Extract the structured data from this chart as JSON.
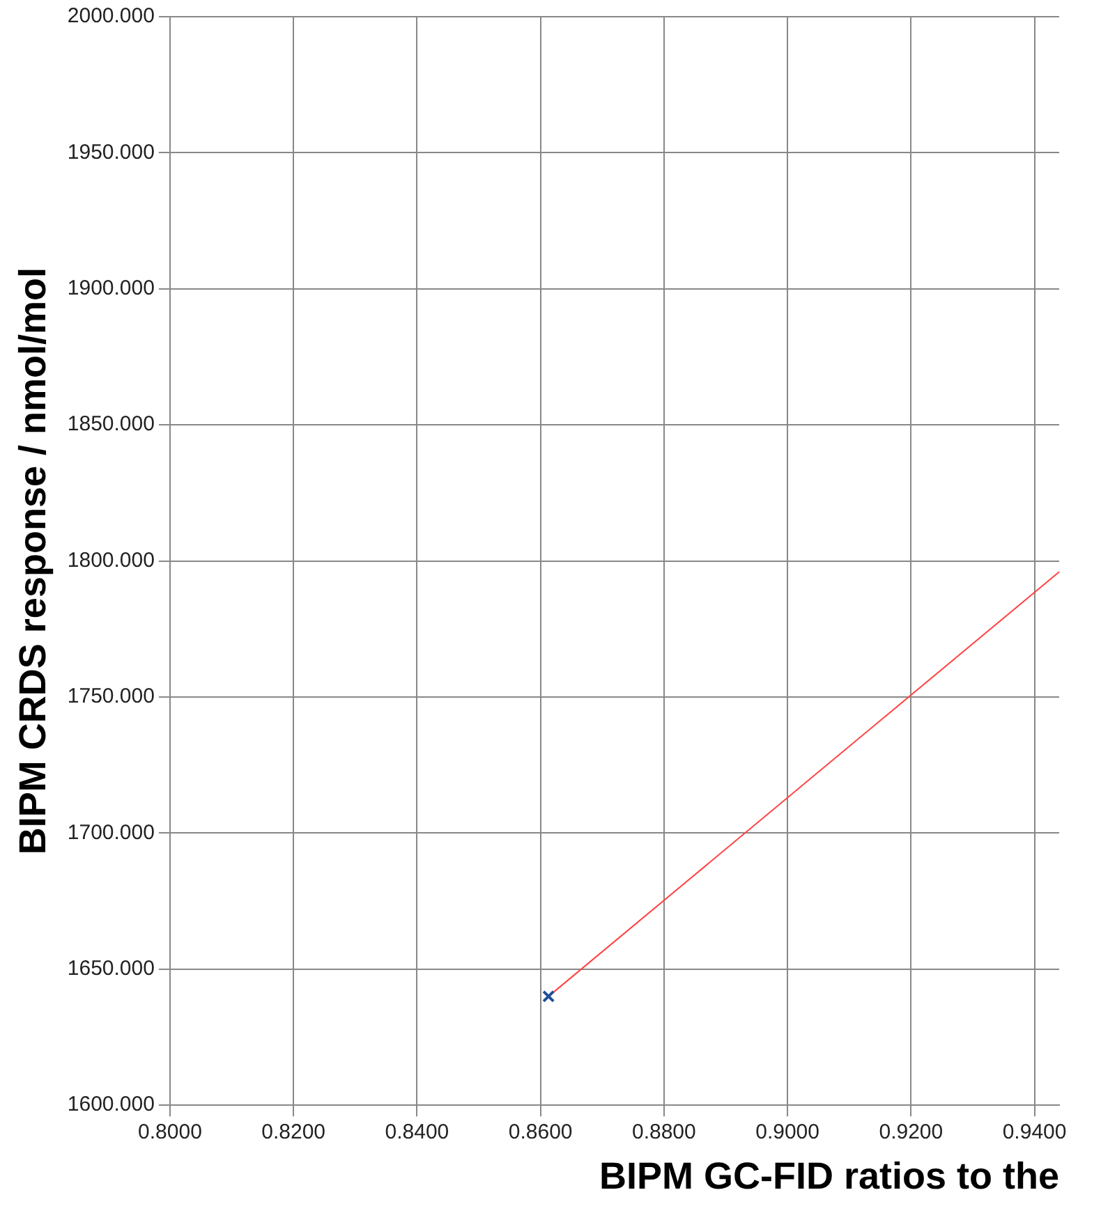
{
  "chart_data": {
    "type": "scatter",
    "xlabel": "BIPM GC-FID ratios to the",
    "ylabel": "BIPM CRDS response / nmol/mol",
    "series": [
      {
        "type": "scatter",
        "color": "#1f4e9a",
        "marker": "cross",
        "values": [
          1640,
          null
        ]
      },
      {
        "type": "line",
        "color": "#ff4040",
        "marker": "none",
        "line_style": "solid",
        "values": [
          1640,
          1796
        ]
      }
    ],
    "x": [
      0.8613,
      0.944
    ],
    "xlim": [
      0.8,
      0.944
    ],
    "xticks": [
      {
        "value": 0.8,
        "label": "0.8000"
      },
      {
        "value": 0.82,
        "label": "0.8200"
      },
      {
        "value": 0.84,
        "label": "0.8400"
      },
      {
        "value": 0.86,
        "label": "0.8600"
      },
      {
        "value": 0.88,
        "label": "0.8800"
      },
      {
        "value": 0.9,
        "label": "0.9000"
      },
      {
        "value": 0.92,
        "label": "0.9200"
      },
      {
        "value": 0.94,
        "label": "0.9400"
      }
    ],
    "ylim": [
      1600,
      2000
    ],
    "yticks": [
      {
        "value": 1600,
        "label": "1600.000"
      },
      {
        "value": 1650,
        "label": "1650.000"
      },
      {
        "value": 1700,
        "label": "1700.000"
      },
      {
        "value": 1750,
        "label": "1750.000"
      },
      {
        "value": 1800,
        "label": "1800.000"
      },
      {
        "value": 1850,
        "label": "1850.000"
      },
      {
        "value": 1900,
        "label": "1900.000"
      },
      {
        "value": 1950,
        "label": "1950.000"
      },
      {
        "value": 2000,
        "label": "2000.000"
      }
    ],
    "grid": true,
    "legend": false
  }
}
